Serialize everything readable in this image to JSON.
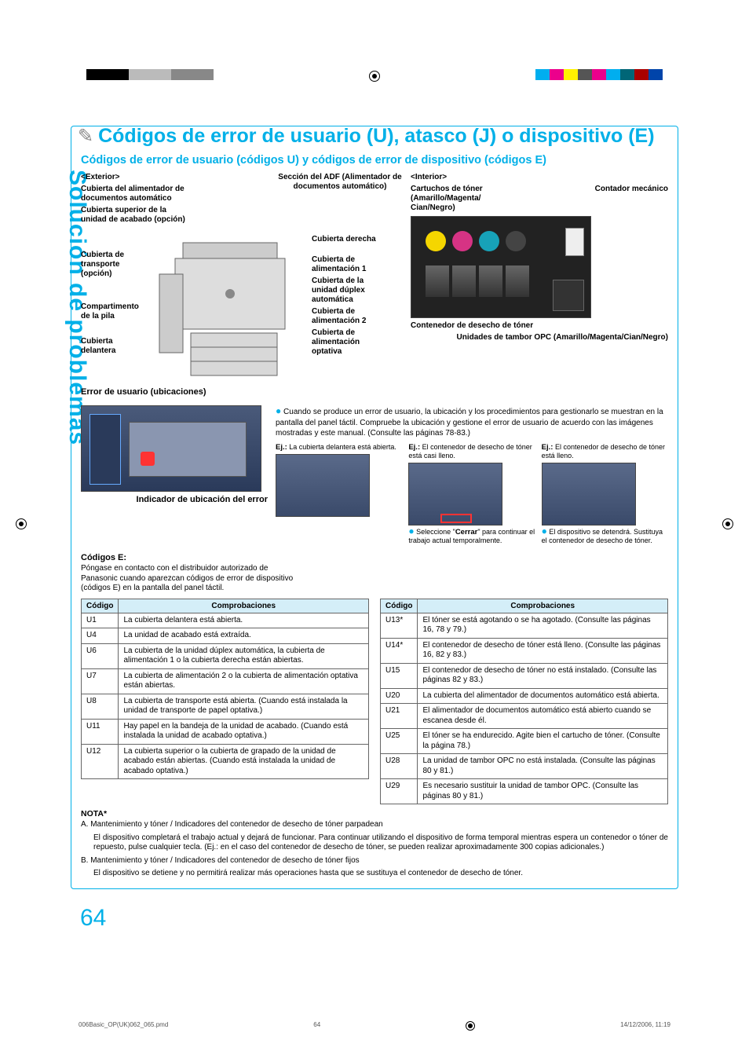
{
  "colors": {
    "accent": "#00b0e8",
    "table_header_bg": "#d4eef8",
    "table_border": "#666666",
    "reg_black": "#000000",
    "reg_cyan": "#00aeef",
    "reg_magenta": "#ec008c",
    "reg_yellow": "#fff200",
    "toner_yellow": "#f5d600",
    "toner_magenta": "#d63384",
    "toner_cyan": "#17a2b8",
    "toner_black": "#222222"
  },
  "sidebar": "Solución de problemas",
  "title": "Códigos de error de usuario (U), atasco (J) o dispositivo (E)",
  "section_heading": "Códigos de error de usuario (códigos U) y códigos de error de dispositivo (códigos E)",
  "exterior": {
    "heading": "<Exterior>",
    "adf_section": "Sección del ADF (Alimentador de documentos automático)",
    "labels": {
      "cover_adf": "Cubierta del alimentador de documentos automático",
      "cover_finisher_top": "Cubierta superior de la unidad de acabado (opción)",
      "cover_transport": "Cubierta de transporte (opción)",
      "stack_compartment": "Compartimento de la pila",
      "cover_front": "Cubierta delantera",
      "cover_right": "Cubierta derecha",
      "cover_feed1": "Cubierta de alimentación 1",
      "cover_adu": "Cubierta de la unidad dúplex automática",
      "cover_feed2": "Cubierta de alimentación 2",
      "cover_feed_opt": "Cubierta de alimentación optativa"
    },
    "subheading": "Error de usuario (ubicaciones)"
  },
  "interior": {
    "heading": "<Interior>",
    "toner_cartridges": "Cartuchos de tóner (Amarillo/Magenta/ Cian/Negro)",
    "mech_counter": "Contador mecánico",
    "waste_container": "Contenedor de desecho de tóner",
    "opc_units": "Unidades de tambor OPC (Amarillo/Magenta/Cian/Negro)"
  },
  "locator": {
    "caption": "Indicador de ubicación del error",
    "intro": "Cuando se produce un error de usuario, la ubicación y los procedimientos para gestionarlo se muestran en la pantalla del panel táctil. Compruebe la ubicación y gestione el error de usuario de acuerdo con las imágenes mostradas y este manual. (Consulte las páginas 78-83.)",
    "ex1_label": "Ej.:",
    "ex1": " La cubierta delantera está abierta.",
    "ex2": " El contenedor de desecho de tóner está casi lleno.",
    "ex3": " El contenedor de desecho de tóner está lleno.",
    "close_note": "Seleccione \"Cerrar\" para continuar el trabajo actual temporalmente.",
    "close_bold": "Cerrar",
    "stop_note": "El dispositivo se detendrá. Sustituya el contenedor de desecho de tóner."
  },
  "codigos_e": {
    "heading": "Códigos E:",
    "body": "Póngase en contacto con el distribuidor autorizado de Panasonic cuando aparezcan códigos de error de dispositivo (códigos E) en la pantalla del panel táctil."
  },
  "table_headers": {
    "code": "Código",
    "check": "Comprobaciones"
  },
  "table_left": [
    {
      "c": "U1",
      "t": "La cubierta delantera está abierta."
    },
    {
      "c": "U4",
      "t": "La unidad de acabado está extraída."
    },
    {
      "c": "U6",
      "t": "La cubierta de la unidad dúplex automática, la cubierta de alimentación 1 o la cubierta derecha están abiertas."
    },
    {
      "c": "U7",
      "t": "La cubierta de alimentación 2 o la cubierta de alimentación optativa están abiertas."
    },
    {
      "c": "U8",
      "t": "La cubierta de transporte está abierta. (Cuando está instalada la unidad de transporte de papel optativa.)"
    },
    {
      "c": "U11",
      "t": "Hay papel en la bandeja de la unidad de acabado.\n(Cuando está instalada la unidad de acabado optativa.)"
    },
    {
      "c": "U12",
      "t": "La cubierta superior o la cubierta de grapado de la unidad de acabado están abiertas.\n(Cuando está instalada la unidad de acabado optativa.)"
    }
  ],
  "table_right": [
    {
      "c": "U13*",
      "t": "El tóner se está agotando o se ha agotado. (Consulte las páginas 16, 78 y 79.)"
    },
    {
      "c": "U14*",
      "t": "El contenedor de desecho de tóner está lleno. (Consulte las páginas 16, 82 y 83.)"
    },
    {
      "c": "U15",
      "t": "El contenedor de desecho de tóner no está instalado. (Consulte las páginas 82 y 83.)"
    },
    {
      "c": "U20",
      "t": "La cubierta del alimentador de documentos automático está abierta."
    },
    {
      "c": "U21",
      "t": "El alimentador de documentos automático está abierto cuando se escanea desde él."
    },
    {
      "c": "U25",
      "t": "El tóner se ha endurecido. Agite bien el cartucho de tóner. (Consulte la página 78.)"
    },
    {
      "c": "U28",
      "t": "La unidad de tambor OPC no está instalada. (Consulte las páginas 80 y 81.)"
    },
    {
      "c": "U29",
      "t": "Es necesario sustituir la unidad de tambor OPC. (Consulte las páginas 80 y 81.)"
    }
  ],
  "nota": {
    "heading": "NOTA*",
    "a": "A. Mantenimiento y tóner / Indicadores del contenedor de desecho de tóner parpadean",
    "a_body": "El dispositivo completará el trabajo actual y dejará de funcionar. Para continuar utilizando el dispositivo de forma temporal mientras espera un contenedor o tóner de repuesto, pulse cualquier tecla. (Ej.: en el caso del contenedor de desecho de tóner, se pueden realizar aproximadamente 300 copias adicionales.)",
    "b": "B. Mantenimiento y tóner / Indicadores del contenedor de desecho de tóner fijos",
    "b_body": "El dispositivo se detiene y no permitirá realizar más operaciones hasta que se sustituya el contenedor de desecho de tóner."
  },
  "page_number": "64",
  "footer": {
    "file": "006Basic_OP(UK)062_065.pmd",
    "page": "64",
    "date": "14/12/2006, 11:19"
  }
}
